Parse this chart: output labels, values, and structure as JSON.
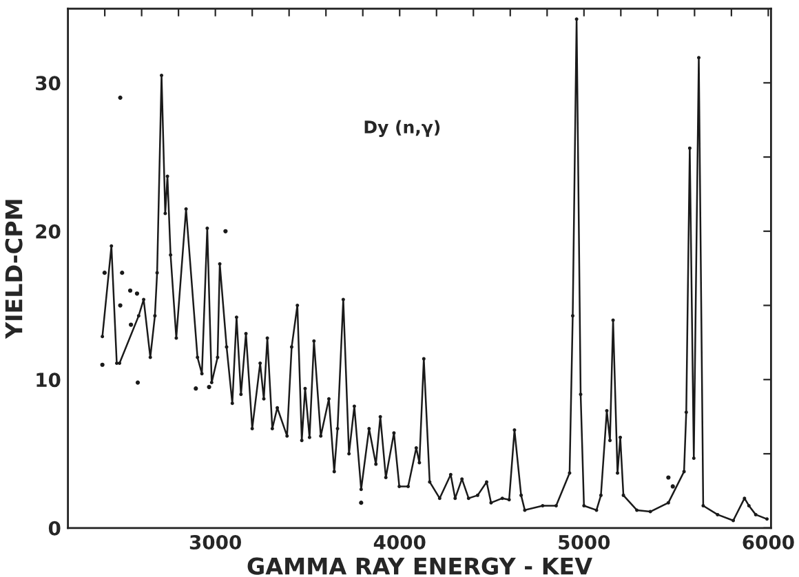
{
  "chart_data": {
    "type": "line",
    "xlabel": "GAMMA RAY ENERGY - KEV",
    "ylabel": "YIELD-CPM",
    "annotations": [
      "Dy (n,γ)"
    ],
    "xlim": [
      2200,
      6015
    ],
    "ylim": [
      0,
      35
    ],
    "xticks": [
      {
        "value": 2400,
        "label": null
      },
      {
        "value": 2600,
        "label": null
      },
      {
        "value": 2800,
        "label": null
      },
      3000,
      {
        "value": 3200,
        "label": null
      },
      {
        "value": 3400,
        "label": null
      },
      {
        "value": 3600,
        "label": null
      },
      {
        "value": 3800,
        "label": null
      },
      4000,
      {
        "value": 4200,
        "label": null
      },
      {
        "value": 4400,
        "label": null
      },
      {
        "value": 4600,
        "label": null
      },
      {
        "value": 4800,
        "label": null
      },
      5000,
      {
        "value": 5200,
        "label": null
      },
      {
        "value": 5400,
        "label": null
      },
      {
        "value": 5600,
        "label": null
      },
      {
        "value": 5800,
        "label": null
      },
      6000
    ],
    "yticks": [
      0,
      {
        "value": 5,
        "label": null
      },
      10,
      {
        "value": 15,
        "label": null
      },
      20,
      {
        "value": 25,
        "label": null
      },
      30
    ],
    "grid": false,
    "legend": false,
    "series": [
      {
        "color": "#1a1a1a",
        "marker": "circle",
        "x": [
          2387,
          2436,
          2465,
          2480,
          2584,
          2611,
          2647,
          2672,
          2684,
          2708,
          2728,
          2740,
          2757,
          2788,
          2841,
          2903,
          2927,
          2956,
          2980,
          3012,
          3024,
          3061,
          3092,
          3115,
          3139,
          3166,
          3200,
          3243,
          3263,
          3282,
          3309,
          3336,
          3389,
          3414,
          3445,
          3469,
          3487,
          3511,
          3535,
          3572,
          3616,
          3645,
          3663,
          3694,
          3725,
          3754,
          3791,
          3834,
          3871,
          3895,
          3925,
          3969,
          3998,
          4046,
          4090,
          4107,
          4131,
          4163,
          4217,
          4277,
          4301,
          4338,
          4374,
          4423,
          4472,
          4496,
          4557,
          4594,
          4623,
          4659,
          4679,
          4776,
          4849,
          4922,
          4939,
          4960,
          4982,
          5000,
          5068,
          5092,
          5124,
          5141,
          5158,
          5182,
          5197,
          5214,
          5287,
          5360,
          5458,
          5543,
          5555,
          5574,
          5596,
          5623,
          5647,
          5725,
          5810,
          5871,
          5895,
          5932,
          5993
        ],
        "values": [
          12.9,
          19.0,
          11.1,
          11.1,
          14.3,
          15.4,
          11.5,
          14.3,
          17.2,
          30.5,
          21.2,
          23.7,
          18.4,
          12.8,
          21.5,
          11.5,
          10.4,
          20.2,
          9.8,
          11.5,
          17.8,
          12.2,
          8.4,
          14.2,
          9.0,
          13.1,
          6.7,
          11.1,
          8.7,
          12.8,
          6.7,
          8.1,
          6.2,
          12.2,
          15.0,
          5.9,
          9.4,
          6.1,
          12.6,
          6.2,
          8.7,
          3.8,
          6.7,
          15.4,
          5.0,
          8.2,
          2.6,
          6.7,
          4.3,
          7.5,
          3.4,
          6.4,
          2.8,
          2.8,
          5.4,
          4.4,
          11.4,
          3.1,
          2.0,
          3.6,
          2.0,
          3.3,
          2.0,
          2.2,
          3.1,
          1.7,
          2.0,
          1.9,
          6.6,
          2.2,
          1.2,
          1.5,
          1.5,
          3.7,
          14.3,
          34.3,
          9.0,
          1.5,
          1.2,
          2.2,
          7.9,
          5.9,
          14.0,
          3.7,
          6.1,
          2.2,
          1.2,
          1.1,
          1.7,
          3.8,
          7.8,
          25.6,
          4.7,
          31.7,
          1.5,
          0.9,
          0.5,
          2.0,
          1.5,
          0.9,
          0.6
        ]
      },
      {
        "type": "scatter",
        "color": "#1a1a1a",
        "marker": "circle",
        "x": [
          2387,
          2399,
          2484,
          2494,
          2538,
          2542,
          2575,
          2579,
          2484,
          2894,
          2966,
          3055,
          3791,
          5458,
          5482
        ],
        "values": [
          11.0,
          17.2,
          15.0,
          17.2,
          16.0,
          13.7,
          15.8,
          9.8,
          29.0,
          9.4,
          9.5,
          20.0,
          1.7,
          3.4,
          2.8
        ]
      }
    ]
  }
}
